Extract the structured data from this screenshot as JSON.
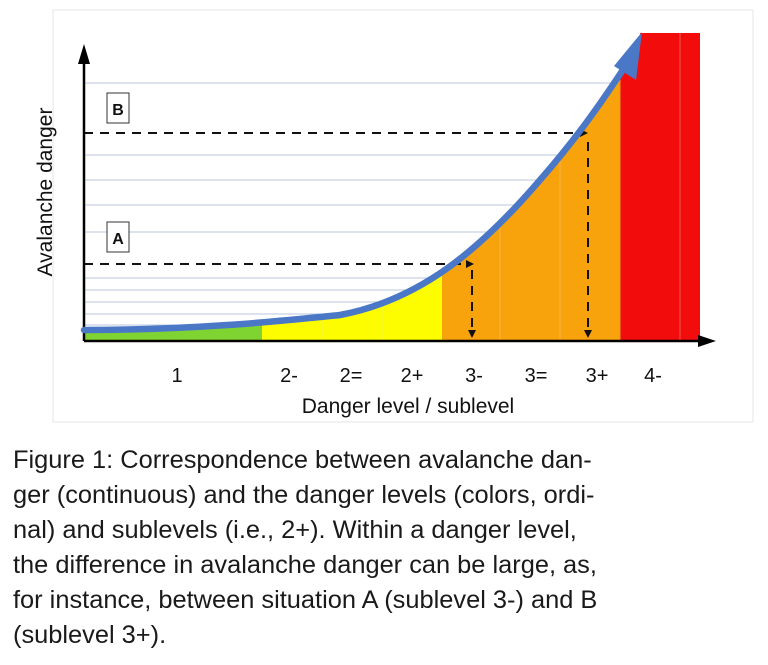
{
  "diagram": {
    "y_axis_label": "Avalanche danger",
    "x_axis_label": "Danger level / sublevel",
    "tick_labels": [
      "1",
      "2-",
      "2=",
      "2+",
      "3-",
      "3=",
      "3+",
      "4-"
    ],
    "markers": [
      {
        "id": "A",
        "label": "A",
        "sublevel": "3-"
      },
      {
        "id": "B",
        "label": "B",
        "sublevel": "3+"
      }
    ],
    "level_colors": {
      "level1": "#7fd431",
      "level2": "#fdfd00",
      "level3": "#f9a30c",
      "level4": "#f20c0c",
      "curve": "#4a78c6"
    }
  },
  "caption": {
    "lines": [
      "Figure 1: Correspondence between avalanche dan-",
      "ger (continuous) and the danger levels (colors, ordi-",
      "nal) and sublevels (i.e., 2+). Within a danger level,",
      "the difference in avalanche danger can be large, as,",
      "for instance, between situation A (sublevel 3-) and B",
      "(sublevel 3+)."
    ]
  }
}
